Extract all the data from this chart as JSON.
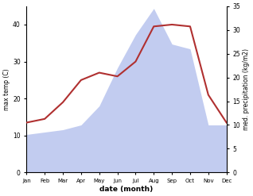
{
  "months": [
    "Jan",
    "Feb",
    "Mar",
    "Apr",
    "May",
    "Jun",
    "Jul",
    "Aug",
    "Sep",
    "Oct",
    "Nov",
    "Dec"
  ],
  "temp": [
    13.5,
    14.5,
    19.0,
    25.0,
    27.0,
    26.0,
    30.0,
    39.5,
    40.0,
    39.5,
    21.0,
    13.5
  ],
  "precip": [
    8.0,
    8.5,
    9.0,
    10.0,
    14.0,
    22.0,
    29.0,
    34.5,
    27.0,
    26.0,
    10.0,
    10.0
  ],
  "temp_color": "#b03030",
  "precip_fill_color": "#b8c4ee",
  "temp_ylim": [
    0,
    45
  ],
  "precip_ylim": [
    0,
    35
  ],
  "temp_yticks": [
    0,
    10,
    20,
    30,
    40
  ],
  "precip_yticks": [
    0,
    5,
    10,
    15,
    20,
    25,
    30,
    35
  ],
  "xlabel": "date (month)",
  "ylabel_left": "max temp (C)",
  "ylabel_right": "med. precipitation (kg/m2)",
  "bg_color": "#ffffff"
}
